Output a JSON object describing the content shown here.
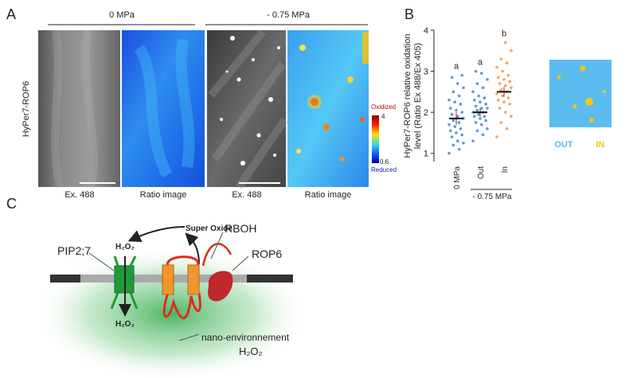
{
  "panel_labels": [
    "A",
    "B",
    "C"
  ],
  "panel_a": {
    "conditions": [
      "0 MPa",
      "- 0.75 MPa"
    ],
    "row_label": "HyPer7-ROP6",
    "image_labels": [
      "Ex. 488",
      "Ratio image",
      "Ex. 488",
      "Ratio image"
    ],
    "colorbar": {
      "top_label": "Oxidized",
      "max": 4,
      "min": 0.6,
      "bottom_label": "Reduced"
    }
  },
  "chart_data": {
    "type": "dotplot",
    "ylabel": [
      "HyPer7-ROP6 relative oxidation",
      "level (Ratio Ex 488/Ex 405)"
    ],
    "categories": [
      "0 MPa",
      "Out",
      "In"
    ],
    "group_label": "- 0.75 MPa",
    "colors": [
      "#5b9bd5",
      "#5b9bd5",
      "#f4a460"
    ],
    "points": [
      [
        1.0,
        1.1,
        1.2,
        1.25,
        1.3,
        1.4,
        1.45,
        1.5,
        1.55,
        1.6,
        1.65,
        1.7,
        1.75,
        1.8,
        1.85,
        1.9,
        1.95,
        2.0,
        2.05,
        2.1,
        2.2,
        2.25,
        2.3,
        2.4,
        2.5,
        2.6,
        2.7,
        2.85,
        2.9
      ],
      [
        1.3,
        1.45,
        1.55,
        1.6,
        1.7,
        1.75,
        1.8,
        1.85,
        1.9,
        1.9,
        1.95,
        2.0,
        2.0,
        2.05,
        2.1,
        2.1,
        2.15,
        2.2,
        2.25,
        2.3,
        2.35,
        2.4,
        2.5,
        2.6,
        2.7,
        2.8,
        2.95,
        3.0
      ],
      [
        1.4,
        1.6,
        1.75,
        1.9,
        2.0,
        2.1,
        2.2,
        2.25,
        2.3,
        2.35,
        2.4,
        2.45,
        2.5,
        2.55,
        2.6,
        2.65,
        2.7,
        2.75,
        2.8,
        2.85,
        2.9,
        3.0,
        3.1,
        3.2,
        3.3,
        3.5,
        3.7
      ]
    ],
    "means": [
      1.85,
      2.0,
      2.5
    ],
    "errors": [
      0.15,
      0.1,
      0.12
    ],
    "letters": [
      "a",
      "a",
      "b"
    ],
    "ylim": [
      0.8,
      4
    ],
    "yticks": [
      1,
      2,
      3,
      4
    ]
  },
  "inset": {
    "labels": [
      "OUT",
      "IN"
    ]
  },
  "panel_c": {
    "super_oxide": "Super Oxide",
    "h2o2_top": "H₂O₂",
    "h2o2_bottom": "H₂O₂",
    "pip": "PIP2;7",
    "rboh": "RBOH",
    "rop6": "ROP6",
    "nano": "nano-environnement",
    "nano_h2o2": "H₂O₂"
  }
}
